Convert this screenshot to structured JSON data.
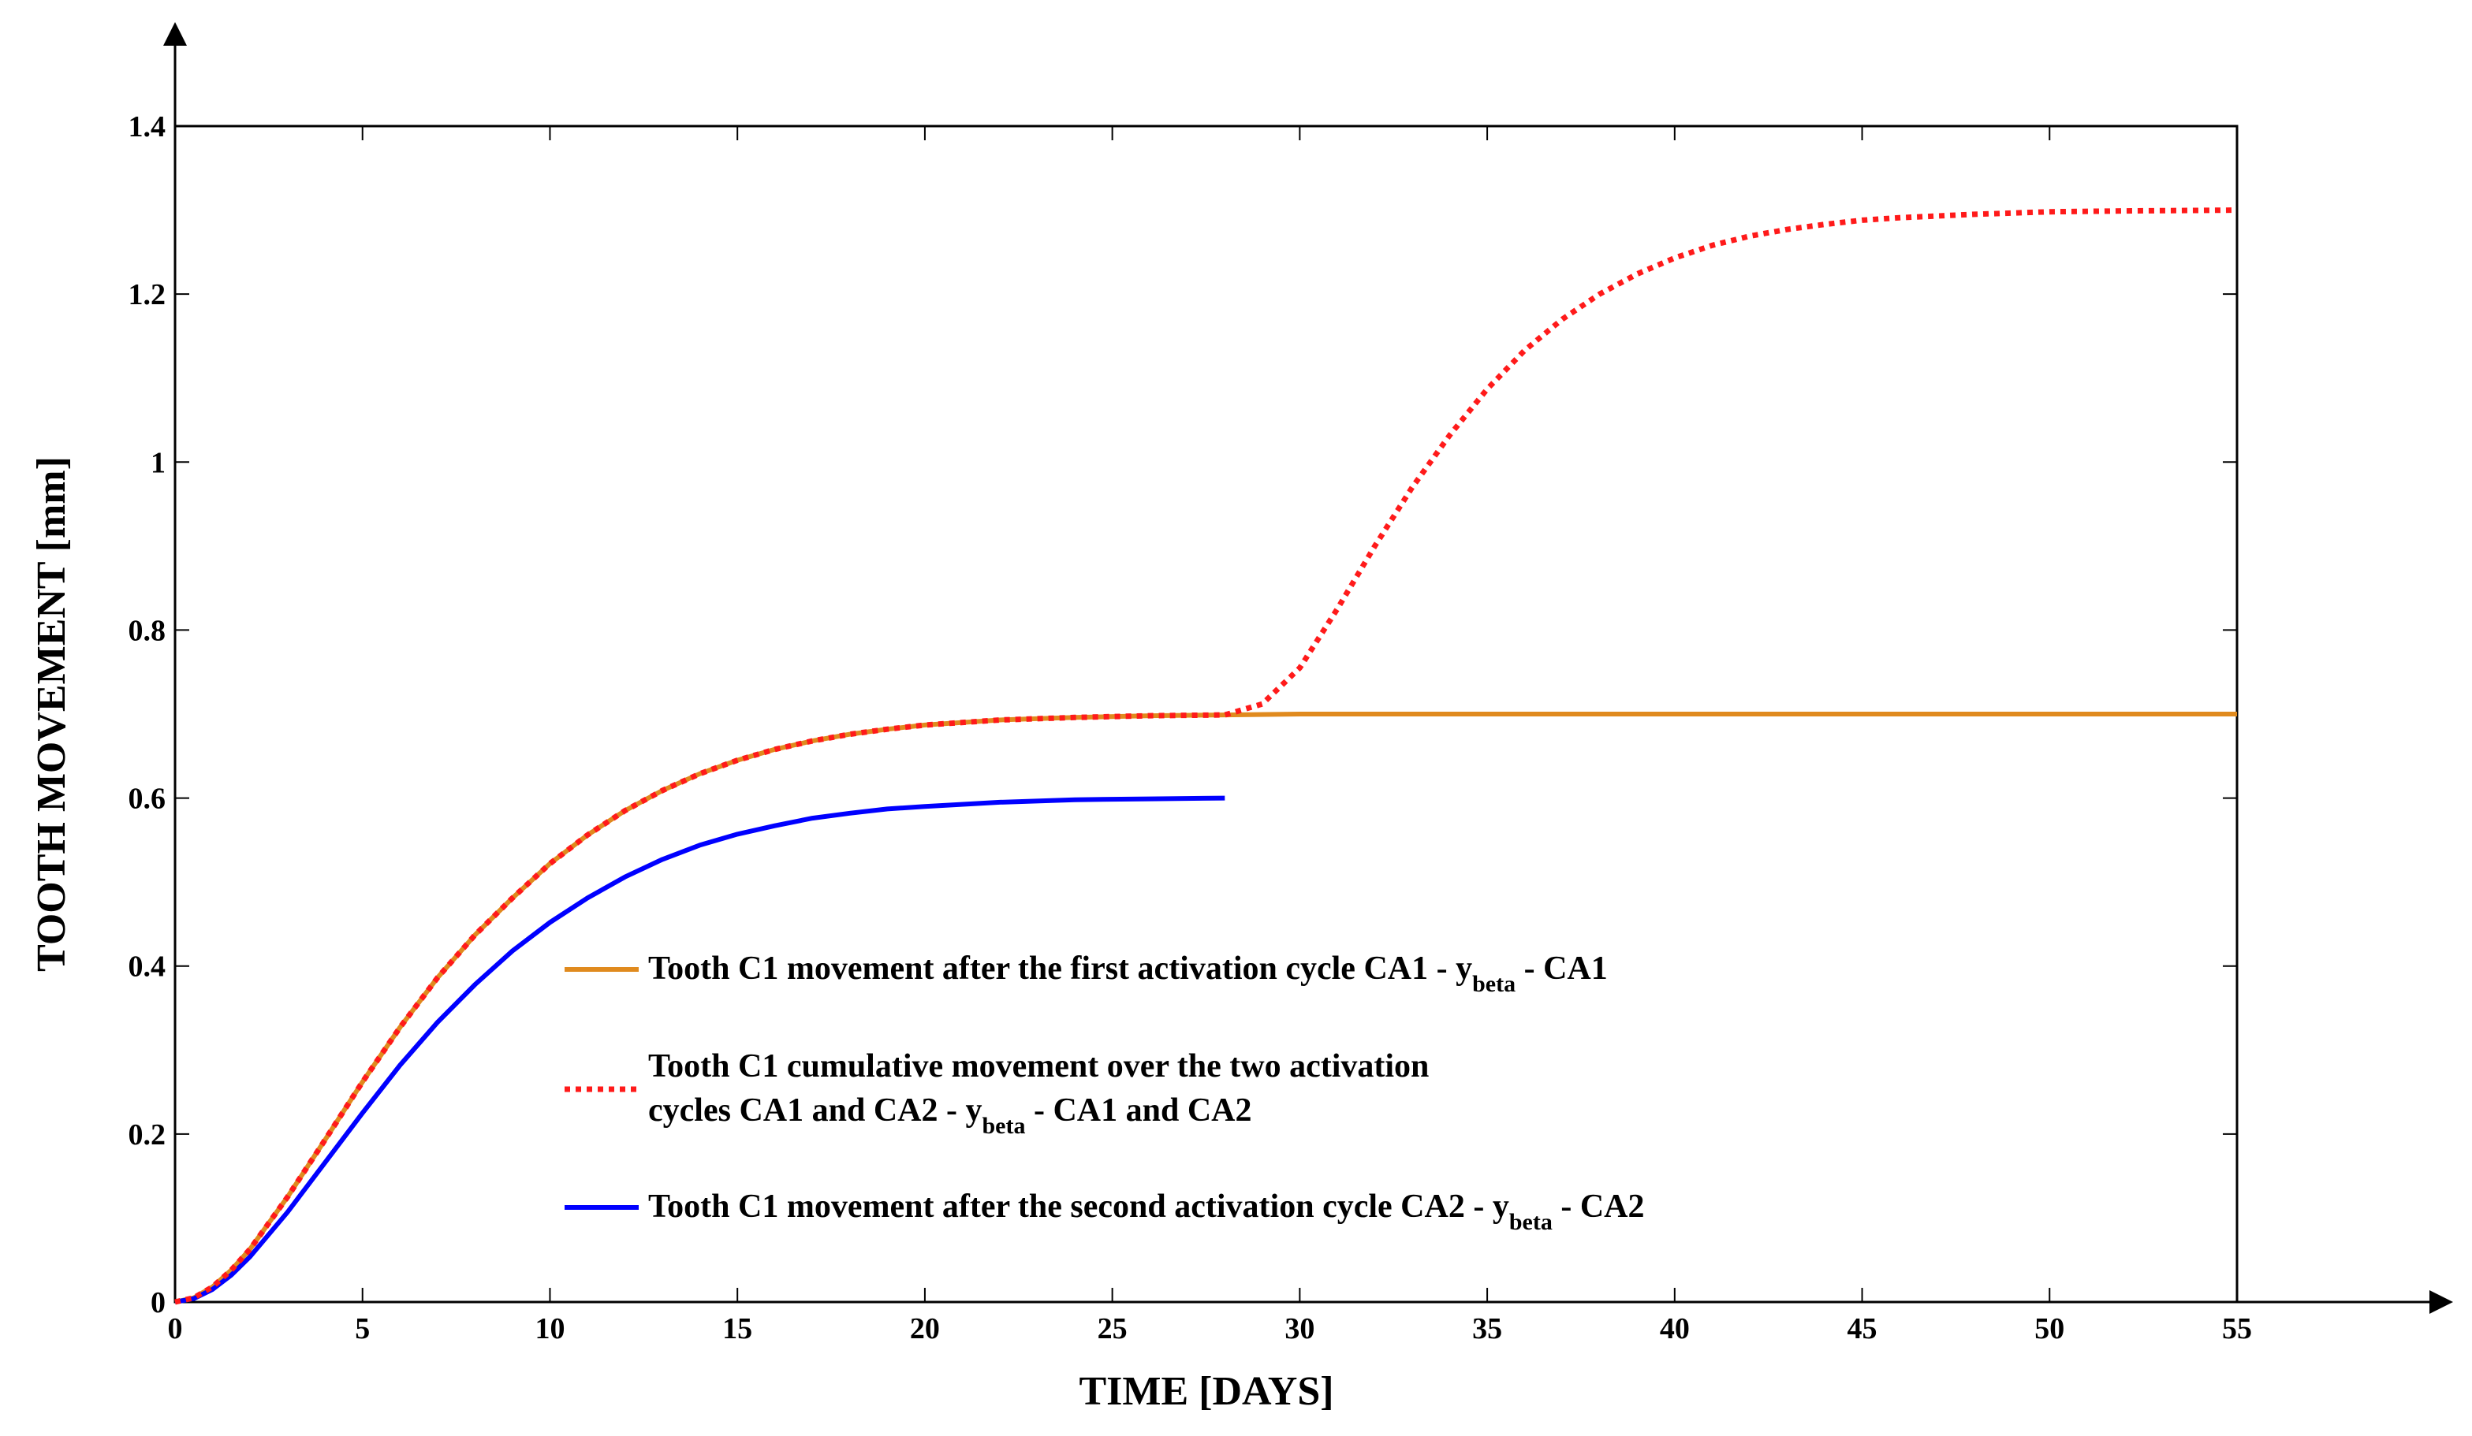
{
  "chart_data": {
    "type": "line",
    "title": "",
    "xlabel": "TIME [DAYS]",
    "ylabel": "TOOTH MOVEMENT [mm]",
    "xlim": [
      0,
      55
    ],
    "ylim": [
      0,
      1.4
    ],
    "xticks": [
      0,
      5,
      10,
      15,
      20,
      25,
      30,
      35,
      40,
      45,
      50,
      55
    ],
    "xtick_labels": [
      "0",
      "5",
      "10",
      "15",
      "20",
      "25",
      "30",
      "35",
      "40",
      "45",
      "50",
      "55"
    ],
    "yticks": [
      0,
      0.2,
      0.4,
      0.6,
      0.8,
      1.0,
      1.2,
      1.4
    ],
    "ytick_labels": [
      "0",
      "0.2",
      "0.4",
      "0.6",
      "0.8",
      "1",
      "1.2",
      "1.4"
    ],
    "grid": false,
    "legend_position": "center",
    "series": [
      {
        "name": "Tooth C1 movement after the first activation cycle CA1 - y_beta - CA1",
        "legend_lines": [
          {
            "before": "Tooth C1 movement after the first activation cycle CA1 - y",
            "sub": "beta",
            "after": " - CA1"
          }
        ],
        "color": "#e08a1e",
        "style": "solid",
        "x": [
          0,
          0.5,
          1,
          1.5,
          2,
          3,
          4,
          5,
          6,
          7,
          8,
          9,
          10,
          11,
          12,
          13,
          14,
          15,
          16,
          17,
          18,
          19,
          20,
          22,
          24,
          26,
          28,
          30,
          35,
          40,
          45,
          50,
          55
        ],
        "values": [
          0,
          0.005,
          0.018,
          0.038,
          0.063,
          0.125,
          0.193,
          0.262,
          0.327,
          0.386,
          0.437,
          0.481,
          0.522,
          0.556,
          0.585,
          0.609,
          0.629,
          0.645,
          0.658,
          0.668,
          0.676,
          0.682,
          0.687,
          0.693,
          0.696,
          0.698,
          0.699,
          0.7,
          0.7,
          0.7,
          0.7,
          0.7,
          0.7
        ]
      },
      {
        "name": "Tooth C1 cumulative movement over the two activation cycles CA1 and CA2 - y_beta - CA1 and CA2",
        "legend_lines": [
          {
            "before": "Tooth C1 cumulative movement over the two activation",
            "sub": "",
            "after": ""
          },
          {
            "before": "cycles CA1 and CA2 - y",
            "sub": "beta",
            "after": " - CA1 and CA2"
          }
        ],
        "color": "#ff1a1a",
        "style": "dotted",
        "x": [
          0,
          0.5,
          1,
          1.5,
          2,
          3,
          4,
          5,
          6,
          7,
          8,
          9,
          10,
          11,
          12,
          13,
          14,
          15,
          16,
          17,
          18,
          19,
          20,
          22,
          24,
          26,
          28,
          29,
          30,
          31,
          32,
          33,
          34,
          35,
          36,
          37,
          38,
          39,
          40,
          41,
          42,
          43,
          44,
          45,
          46,
          48,
          50,
          52,
          55
        ],
        "values": [
          0,
          0.005,
          0.018,
          0.038,
          0.063,
          0.125,
          0.193,
          0.262,
          0.327,
          0.386,
          0.437,
          0.481,
          0.522,
          0.556,
          0.585,
          0.609,
          0.629,
          0.645,
          0.658,
          0.668,
          0.676,
          0.682,
          0.687,
          0.693,
          0.696,
          0.698,
          0.699,
          0.712,
          0.755,
          0.825,
          0.9,
          0.97,
          1.032,
          1.087,
          1.133,
          1.17,
          1.2,
          1.224,
          1.243,
          1.258,
          1.269,
          1.277,
          1.283,
          1.288,
          1.291,
          1.295,
          1.298,
          1.299,
          1.3
        ]
      },
      {
        "name": "Tooth C1 movement after the second activation cycle CA2 - y_beta - CA2",
        "legend_lines": [
          {
            "before": "Tooth C1 movement after the second activation cycle CA2 - y",
            "sub": "beta",
            "after": " - CA2"
          }
        ],
        "color": "#0000ff",
        "style": "solid",
        "x": [
          0,
          0.5,
          1,
          1.5,
          2,
          3,
          4,
          5,
          6,
          7,
          8,
          9,
          10,
          11,
          12,
          13,
          14,
          15,
          16,
          17,
          18,
          19,
          20,
          22,
          24,
          26,
          28
        ],
        "values": [
          0,
          0.004,
          0.015,
          0.032,
          0.054,
          0.107,
          0.166,
          0.225,
          0.282,
          0.333,
          0.378,
          0.418,
          0.452,
          0.481,
          0.506,
          0.527,
          0.544,
          0.557,
          0.567,
          0.576,
          0.582,
          0.587,
          0.59,
          0.595,
          0.598,
          0.599,
          0.6
        ]
      }
    ]
  }
}
